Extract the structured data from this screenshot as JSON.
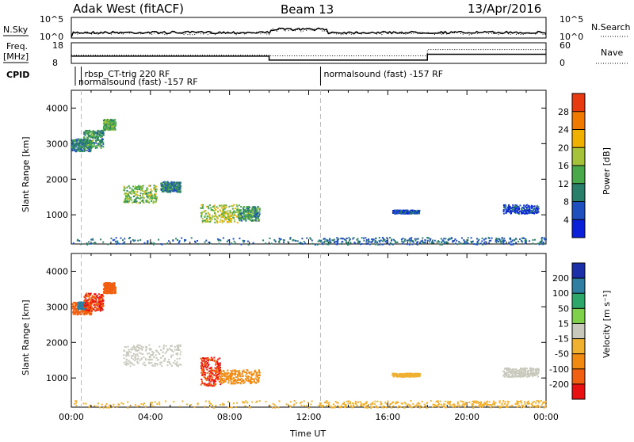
{
  "header": {
    "site": "Adak West (fitACF)",
    "beam": "Beam 13",
    "date": "13/Apr/2016"
  },
  "status_panels": {
    "nsky_label": "N.Sky",
    "nsky_ticks": [
      "10^5",
      "10^0"
    ],
    "nsearch_label": "N.Search",
    "nsearch_ticks": [
      "10^5",
      "10^0"
    ],
    "freq_label": [
      "Freq.",
      "[MHz]"
    ],
    "freq_ticks": [
      "18",
      "8"
    ],
    "nave_label": "Nave",
    "nave_ticks": [
      "60",
      "0"
    ],
    "cpid_label": "CPID",
    "cpid_entries": [
      {
        "t": 0.5,
        "text": "rbsp_CT-trig 220 RF",
        "row": 1
      },
      {
        "t": 0.2,
        "text": "normalsound (fast) -157 RF",
        "row": 2
      },
      {
        "t": 12.6,
        "text": "normalsound (fast) -157 RF",
        "row": 1
      }
    ],
    "freq_steps": [
      [
        0,
        11.5
      ],
      [
        10,
        9.6
      ],
      [
        18,
        12.4
      ],
      [
        24,
        12.4
      ]
    ],
    "nave_steps": [
      [
        0,
        24
      ],
      [
        10,
        22
      ],
      [
        18,
        40
      ],
      [
        24,
        40
      ]
    ]
  },
  "chart_data": [
    {
      "type": "scatter",
      "title": "",
      "ylabel": "Slant Range [km]",
      "xlabel": "",
      "xlim": [
        0,
        24
      ],
      "ylim": [
        180,
        4500
      ],
      "yticks": [
        "1000",
        "2000",
        "3000",
        "4000"
      ],
      "colorbar": {
        "label": "Power [dB]",
        "ticks": [
          "4",
          "8",
          "12",
          "16",
          "20",
          "24",
          "28"
        ],
        "range": [
          0,
          32
        ]
      },
      "series": [
        {
          "x_range": [
            0.0,
            1.0
          ],
          "y_range": [
            2800,
            3150
          ],
          "value": 10
        },
        {
          "x_range": [
            0.6,
            1.6
          ],
          "y_range": [
            2900,
            3400
          ],
          "value": 12
        },
        {
          "x_range": [
            1.6,
            2.2
          ],
          "y_range": [
            3400,
            3700
          ],
          "value": 14
        },
        {
          "x_range": [
            2.6,
            4.3
          ],
          "y_range": [
            1350,
            1850
          ],
          "value": 16
        },
        {
          "x_range": [
            4.5,
            5.5
          ],
          "y_range": [
            1650,
            1950
          ],
          "value": 10
        },
        {
          "x_range": [
            6.5,
            8.5
          ],
          "y_range": [
            800,
            1300
          ],
          "value": 18
        },
        {
          "x_range": [
            8.4,
            9.5
          ],
          "y_range": [
            850,
            1250
          ],
          "value": 12
        },
        {
          "x_range": [
            16.2,
            17.6
          ],
          "y_range": [
            1050,
            1150
          ],
          "value": 6
        },
        {
          "x_range": [
            21.8,
            23.6
          ],
          "y_range": [
            1050,
            1300
          ],
          "value": 5
        },
        {
          "x_range": [
            0.0,
            24.0
          ],
          "y_range": [
            180,
            380
          ],
          "value": 8
        }
      ]
    },
    {
      "type": "scatter",
      "title": "",
      "ylabel": "Slant Range [km]",
      "xlabel": "Time UT",
      "xlim": [
        0,
        24
      ],
      "ylim": [
        180,
        4500
      ],
      "yticks": [
        "1000",
        "2000",
        "3000",
        "4000"
      ],
      "xticks": [
        "00:00",
        "04:00",
        "08:00",
        "12:00",
        "16:00",
        "20:00",
        "00:00"
      ],
      "colorbar": {
        "label": "Velocity [m s⁻¹]",
        "ticks": [
          "200",
          "100",
          "50",
          "15",
          "-15",
          "-50",
          "-100",
          "-200"
        ]
      },
      "series": [
        {
          "x_range": [
            0.0,
            1.0
          ],
          "y_range": [
            2800,
            3150
          ],
          "value": -120
        },
        {
          "x_range": [
            0.3,
            0.7
          ],
          "y_range": [
            2950,
            3150
          ],
          "value": 180
        },
        {
          "x_range": [
            0.6,
            1.6
          ],
          "y_range": [
            2900,
            3400
          ],
          "value": -200
        },
        {
          "x_range": [
            1.6,
            2.2
          ],
          "y_range": [
            3400,
            3700
          ],
          "value": -180
        },
        {
          "x_range": [
            2.6,
            5.5
          ],
          "y_range": [
            1350,
            1950
          ],
          "value": 0
        },
        {
          "x_range": [
            6.5,
            7.5
          ],
          "y_range": [
            800,
            1600
          ],
          "value": -200
        },
        {
          "x_range": [
            7.5,
            9.5
          ],
          "y_range": [
            850,
            1250
          ],
          "value": -80
        },
        {
          "x_range": [
            16.2,
            17.6
          ],
          "y_range": [
            1050,
            1150
          ],
          "value": -40
        },
        {
          "x_range": [
            21.8,
            23.6
          ],
          "y_range": [
            1050,
            1300
          ],
          "value": 0
        },
        {
          "x_range": [
            0.0,
            24.0
          ],
          "y_range": [
            180,
            380
          ],
          "value": -30
        }
      ]
    }
  ]
}
